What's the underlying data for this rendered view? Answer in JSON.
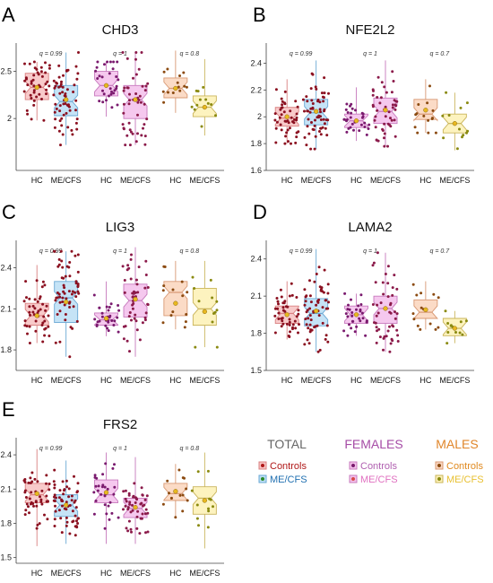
{
  "colors": {
    "hc_total_fill": "#f7c4c4",
    "hc_total_stroke": "#d98080",
    "me_total_fill": "#bfe0f5",
    "me_total_stroke": "#6aa8d4",
    "hc_fem_fill": "#f4c2ec",
    "hc_fem_stroke": "#c779bd",
    "me_fem_fill": "#f4c2ec",
    "me_fem_stroke": "#c779bd",
    "hc_male_fill": "#fbd7c0",
    "hc_male_stroke": "#d89873",
    "me_male_fill": "#fdf2b8",
    "me_male_stroke": "#c9b45a",
    "point_controls": "#8b1020",
    "point_fem_hc": "#7a1a6e",
    "point_fem_me": "#8b1a4a",
    "point_male_hc": "#8b4a10",
    "point_male_me": "#8a8a10",
    "mean_marker": "#e8b820",
    "total_color": "#666666",
    "females_color": "#a64ca6",
    "males_color": "#e0862a",
    "controls_color": "#b01818",
    "mecfs_color": "#1f6fb0",
    "fem_controls_color": "#b060b0",
    "fem_mecfs_color": "#e070c0",
    "male_controls_color": "#e08a20",
    "male_mecfs_color": "#e8c030"
  },
  "chart_data": [
    {
      "letter": "A",
      "title": "CHD3",
      "type": "box",
      "ylim": [
        1.45,
        2.8
      ],
      "yticks": [
        "2",
        "2.5"
      ],
      "ytick_values": [
        2,
        2.5
      ],
      "groups": [
        {
          "q": "q = 0.99",
          "boxes": [
            {
              "label": "HC",
              "q1": 2.2,
              "median": 2.33,
              "q3": 2.48,
              "whisker_low": 1.98,
              "whisker_high": 2.6,
              "mean": 2.33
            },
            {
              "label": "ME/CFS",
              "q1": 2.03,
              "median": 2.18,
              "q3": 2.35,
              "whisker_low": 1.72,
              "whisker_high": 2.7,
              "mean": 2.2
            }
          ]
        },
        {
          "q": "q = 1",
          "boxes": [
            {
              "label": "HC",
              "q1": 2.24,
              "median": 2.35,
              "q3": 2.5,
              "whisker_low": 2.02,
              "whisker_high": 2.6,
              "mean": 2.35
            },
            {
              "label": "ME/CFS",
              "q1": 2.0,
              "median": 2.2,
              "q3": 2.35,
              "whisker_low": 1.72,
              "whisker_high": 2.7,
              "mean": 2.2
            }
          ]
        },
        {
          "q": "q = 0.8",
          "boxes": [
            {
              "label": "HC",
              "q1": 2.22,
              "median": 2.32,
              "q3": 2.43,
              "whisker_low": 2.06,
              "whisker_high": 2.72,
              "mean": 2.32
            },
            {
              "label": "ME/CFS",
              "q1": 2.02,
              "median": 2.12,
              "q3": 2.24,
              "whisker_low": 1.82,
              "whisker_high": 2.63,
              "mean": 2.12
            }
          ]
        }
      ]
    },
    {
      "letter": "B",
      "title": "NFE2L2",
      "type": "box",
      "ylim": [
        1.6,
        2.55
      ],
      "yticks": [
        "1.6",
        "1.8",
        "2",
        "2.2",
        "2.4"
      ],
      "ytick_values": [
        1.6,
        1.8,
        2.0,
        2.2,
        2.4
      ],
      "groups": [
        {
          "q": "q = 0.99",
          "boxes": [
            {
              "label": "HC",
              "q1": 1.93,
              "median": 1.99,
              "q3": 2.07,
              "whisker_low": 1.8,
              "whisker_high": 2.28,
              "mean": 2.0
            },
            {
              "label": "ME/CFS",
              "q1": 1.94,
              "median": 2.03,
              "q3": 2.13,
              "whisker_low": 1.76,
              "whisker_high": 2.42,
              "mean": 2.04
            }
          ]
        },
        {
          "q": "q = 1",
          "boxes": [
            {
              "label": "HC",
              "q1": 1.92,
              "median": 1.97,
              "q3": 2.02,
              "whisker_low": 1.82,
              "whisker_high": 2.22,
              "mean": 1.97
            },
            {
              "label": "ME/CFS",
              "q1": 1.95,
              "median": 2.04,
              "q3": 2.14,
              "whisker_low": 1.78,
              "whisker_high": 2.42,
              "mean": 2.05
            }
          ]
        },
        {
          "q": "q = 0.7",
          "boxes": [
            {
              "label": "HC",
              "q1": 1.98,
              "median": 2.02,
              "q3": 2.13,
              "whisker_low": 1.88,
              "whisker_high": 2.28,
              "mean": 2.05
            },
            {
              "label": "ME/CFS",
              "q1": 1.88,
              "median": 1.95,
              "q3": 2.02,
              "whisker_low": 1.75,
              "whisker_high": 2.18,
              "mean": 1.95
            }
          ]
        }
      ]
    },
    {
      "letter": "C",
      "title": "LIG3",
      "type": "box",
      "ylim": [
        1.65,
        2.6
      ],
      "yticks": [
        "1.8",
        "2.1",
        "2.4"
      ],
      "ytick_values": [
        1.8,
        2.1,
        2.4
      ],
      "groups": [
        {
          "q": "q = 0.99",
          "boxes": [
            {
              "label": "HC",
              "q1": 1.98,
              "median": 2.05,
              "q3": 2.14,
              "whisker_low": 1.85,
              "whisker_high": 2.42,
              "mean": 2.05
            },
            {
              "label": "ME/CFS",
              "q1": 2.0,
              "median": 2.18,
              "q3": 2.3,
              "whisker_low": 1.75,
              "whisker_high": 2.52,
              "mean": 2.15
            }
          ]
        },
        {
          "q": "q = 1",
          "boxes": [
            {
              "label": "HC",
              "q1": 1.98,
              "median": 2.02,
              "q3": 2.07,
              "whisker_low": 1.9,
              "whisker_high": 2.3,
              "mean": 2.03
            },
            {
              "label": "ME/CFS",
              "q1": 2.04,
              "median": 2.16,
              "q3": 2.28,
              "whisker_low": 1.75,
              "whisker_high": 2.55,
              "mean": 2.17
            }
          ]
        },
        {
          "q": "q = 0.8",
          "boxes": [
            {
              "label": "HC",
              "q1": 2.05,
              "median": 2.22,
              "q3": 2.3,
              "whisker_low": 1.95,
              "whisker_high": 2.45,
              "mean": 2.14
            },
            {
              "label": "ME/CFS",
              "q1": 1.98,
              "median": 2.1,
              "q3": 2.25,
              "whisker_low": 1.82,
              "whisker_high": 2.45,
              "mean": 2.08
            }
          ]
        }
      ]
    },
    {
      "letter": "D",
      "title": "LAMA2",
      "type": "box",
      "ylim": [
        1.5,
        2.55
      ],
      "yticks": [
        "1.5",
        "1.8",
        "2.1",
        "2.4"
      ],
      "ytick_values": [
        1.5,
        1.8,
        2.1,
        2.4
      ],
      "groups": [
        {
          "q": "q = 0.99",
          "boxes": [
            {
              "label": "HC",
              "q1": 1.88,
              "median": 1.96,
              "q3": 2.02,
              "whisker_low": 1.75,
              "whisker_high": 2.22,
              "mean": 1.95
            },
            {
              "label": "ME/CFS",
              "q1": 1.86,
              "median": 1.96,
              "q3": 2.08,
              "whisker_low": 1.65,
              "whisker_high": 2.48,
              "mean": 1.98
            }
          ]
        },
        {
          "q": "q = 1",
          "boxes": [
            {
              "label": "HC",
              "q1": 1.88,
              "median": 1.95,
              "q3": 2.02,
              "whisker_low": 1.78,
              "whisker_high": 2.12,
              "mean": 1.95
            },
            {
              "label": "ME/CFS",
              "q1": 1.88,
              "median": 2.0,
              "q3": 2.1,
              "whisker_low": 1.65,
              "whisker_high": 2.45,
              "mean": 2.0
            }
          ]
        },
        {
          "q": "q = 0.7",
          "boxes": [
            {
              "label": "HC",
              "q1": 1.92,
              "median": 1.97,
              "q3": 2.07,
              "whisker_low": 1.83,
              "whisker_high": 2.22,
              "mean": 1.99
            },
            {
              "label": "ME/CFS",
              "q1": 1.78,
              "median": 1.84,
              "q3": 1.92,
              "whisker_low": 1.72,
              "whisker_high": 1.98,
              "mean": 1.84
            }
          ]
        }
      ]
    },
    {
      "letter": "E",
      "title": "FRS2",
      "type": "box",
      "ylim": [
        1.45,
        2.55
      ],
      "yticks": [
        "1.5",
        "1.8",
        "2.1",
        "2.4"
      ],
      "ytick_values": [
        1.5,
        1.8,
        2.1,
        2.4
      ],
      "groups": [
        {
          "q": "q = 0.99",
          "boxes": [
            {
              "label": "HC",
              "q1": 1.98,
              "median": 2.05,
              "q3": 2.15,
              "whisker_low": 1.6,
              "whisker_high": 2.45,
              "mean": 2.06
            },
            {
              "label": "ME/CFS",
              "q1": 1.86,
              "median": 1.96,
              "q3": 2.05,
              "whisker_low": 1.62,
              "whisker_high": 2.35,
              "mean": 1.96
            }
          ]
        },
        {
          "q": "q = 1",
          "boxes": [
            {
              "label": "HC",
              "q1": 1.98,
              "median": 2.05,
              "q3": 2.18,
              "whisker_low": 1.62,
              "whisker_high": 2.42,
              "mean": 2.07
            },
            {
              "label": "ME/CFS",
              "q1": 1.85,
              "median": 1.93,
              "q3": 2.02,
              "whisker_low": 1.62,
              "whisker_high": 2.38,
              "mean": 1.94
            }
          ]
        },
        {
          "q": "q = 0.8",
          "boxes": [
            {
              "label": "HC",
              "q1": 2.0,
              "median": 2.06,
              "q3": 2.15,
              "whisker_low": 1.85,
              "whisker_high": 2.32,
              "mean": 2.08
            },
            {
              "label": "ME/CFS",
              "q1": 1.88,
              "median": 2.02,
              "q3": 2.12,
              "whisker_low": 1.58,
              "whisker_high": 2.42,
              "mean": 2.0
            }
          ]
        }
      ]
    }
  ],
  "legend": {
    "total_title": "TOTAL",
    "females_title": "FEMALES",
    "males_title": "MALES",
    "controls_label": "Controls",
    "mecfs_label": "ME/CFS"
  }
}
